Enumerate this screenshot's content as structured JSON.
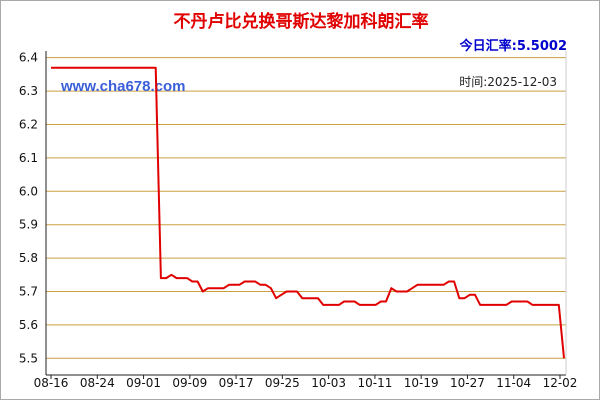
{
  "chart_data": {
    "type": "line",
    "title": "不丹卢比兑换哥斯达黎加科朗汇率",
    "current_rate_label": "今日汇率:",
    "current_rate_value": "5.5002",
    "watermark": "www.cha678.com",
    "time_label": "时间:2025-12-03",
    "x_tick_labels": [
      "08-16",
      "08-24",
      "09-01",
      "09-09",
      "09-17",
      "09-25",
      "10-03",
      "10-11",
      "10-19",
      "10-27",
      "11-04",
      "12-02"
    ],
    "y_tick_labels": [
      "6.4",
      "6.3",
      "6.2",
      "6.1",
      "6.0",
      "5.9",
      "5.8",
      "5.7",
      "5.6",
      "5.5"
    ],
    "ylim": [
      5.45,
      6.42
    ],
    "grid": true,
    "colors": {
      "line": "#e00000",
      "grid": "#c8a040",
      "axis": "#222222",
      "title": "#e00000",
      "rate": "#0000cc"
    },
    "series": [
      {
        "values": [
          6.37,
          6.37,
          6.37,
          6.37,
          6.37,
          6.37,
          6.37,
          6.37,
          6.37,
          6.37,
          6.37,
          6.37,
          6.37,
          6.37,
          6.37,
          6.37,
          6.37,
          6.37,
          6.37,
          6.37,
          6.37,
          5.74,
          5.74,
          5.75,
          5.74,
          5.74,
          5.74,
          5.73,
          5.73,
          5.7,
          5.71,
          5.71,
          5.71,
          5.71,
          5.72,
          5.72,
          5.72,
          5.73,
          5.73,
          5.73,
          5.72,
          5.72,
          5.71,
          5.68,
          5.69,
          5.7,
          5.7,
          5.7,
          5.68,
          5.68,
          5.68,
          5.68,
          5.66,
          5.66,
          5.66,
          5.66,
          5.67,
          5.67,
          5.67,
          5.66,
          5.66,
          5.66,
          5.66,
          5.67,
          5.67,
          5.71,
          5.7,
          5.7,
          5.7,
          5.71,
          5.72,
          5.72,
          5.72,
          5.72,
          5.72,
          5.72,
          5.73,
          5.73,
          5.68,
          5.68,
          5.69,
          5.69,
          5.66,
          5.66,
          5.66,
          5.66,
          5.66,
          5.66,
          5.67,
          5.67,
          5.67,
          5.67,
          5.66,
          5.66,
          5.66,
          5.66,
          5.66,
          5.66,
          5.5002
        ]
      }
    ]
  }
}
